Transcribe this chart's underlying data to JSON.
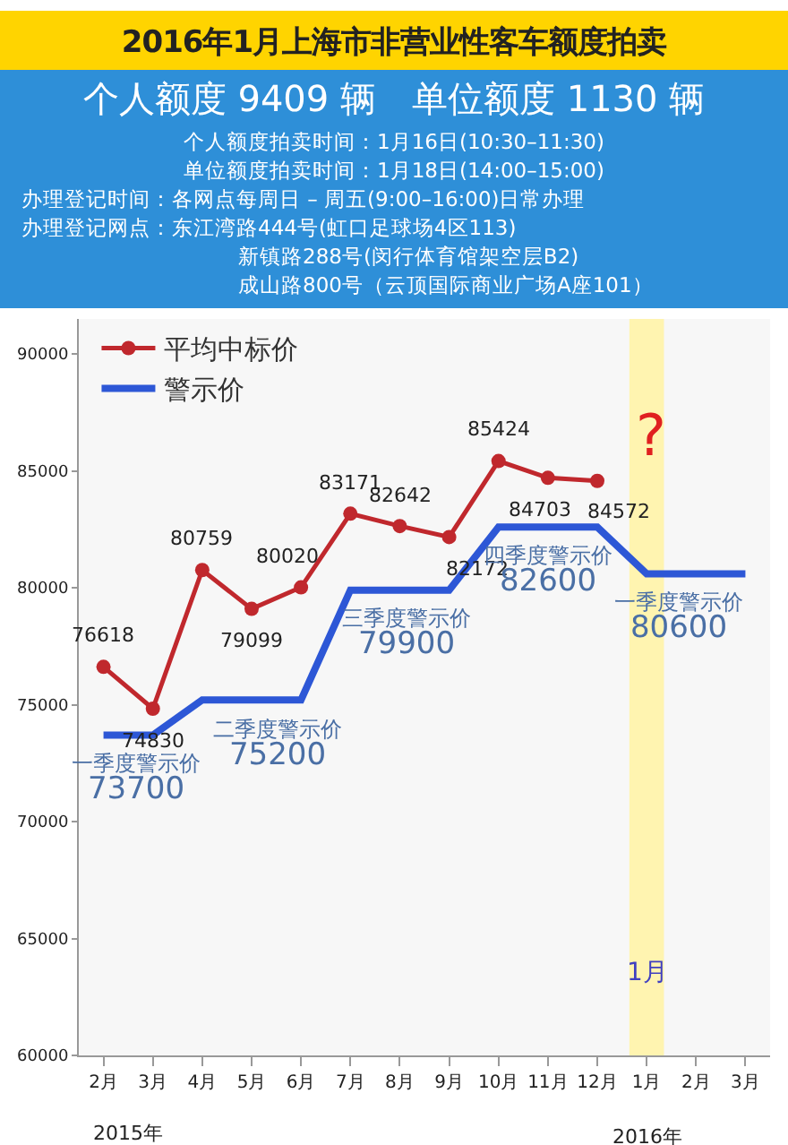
{
  "chart_data": {
    "type": "line",
    "title": "2016年1月上海市非营业性客车额度拍卖",
    "subtitle": "个人额度 9409 辆　单位额度 1130 辆",
    "annotations": [
      "个人额度拍卖时间：1月16日(10:30–11:30)",
      "单位额度拍卖时间：1月18日(14:00–15:00)",
      "办理登记时间：各网点每周日 – 周五(9:00–16:00)日常办理",
      "办理登记网点：东江湾路444号(虹口足球场4区113)",
      "新镇路288号(闵行体育馆架空层B2)",
      "成山路800号（云顶国际商业广场A座101）",
      "2015年",
      "2016年",
      "?"
    ],
    "categories": [
      "2月",
      "3月",
      "4月",
      "5月",
      "6月",
      "7月",
      "8月",
      "9月",
      "10月",
      "11月",
      "12月",
      "1月",
      "2月",
      "3月"
    ],
    "ylim": [
      60000,
      91500
    ],
    "yticks": [
      60000,
      65000,
      70000,
      75000,
      80000,
      85000,
      90000
    ],
    "grid": false,
    "legend": "top left",
    "series": [
      {
        "name": "平均中标价",
        "color": "#c0282d",
        "marker": "circle",
        "values": [
          76618,
          74830,
          80759,
          79099,
          80020,
          83171,
          82642,
          82172,
          85424,
          84703,
          84572,
          null,
          null,
          null
        ],
        "value_labels": [
          "76618",
          "74830",
          "80759",
          "79099",
          "80020",
          "83171",
          "82642",
          "82172",
          "85424",
          "84703",
          "84572",
          null,
          null,
          null
        ]
      },
      {
        "name": "警示价",
        "color": "#2d57d6",
        "marker": "none",
        "values": [
          73700,
          73700,
          75200,
          75200,
          75200,
          79900,
          79900,
          79900,
          82600,
          82600,
          82600,
          80600,
          80600,
          80600
        ],
        "value_labels": [
          "一季度警示价 73700",
          null,
          null,
          "二季度警示价 75200",
          null,
          null,
          "三季度警示价 79900",
          null,
          null,
          "四季度警示价 82600",
          null,
          "一季度警示价 80600",
          null,
          null
        ]
      }
    ],
    "bands": [
      {
        "axis": "x",
        "from": "1月",
        "to": "1月",
        "label": "1月",
        "color": "#fff4b0"
      }
    ]
  }
}
